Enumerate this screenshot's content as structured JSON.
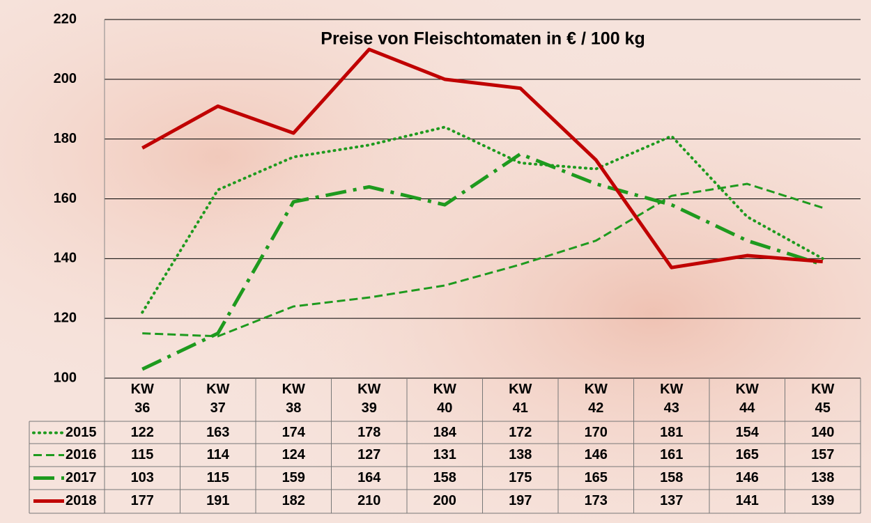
{
  "chart_data": {
    "type": "line",
    "title": "Preise von Fleischtomaten in € / 100 kg",
    "categories": [
      "KW\n36",
      "KW\n37",
      "KW\n38",
      "KW\n39",
      "KW\n40",
      "KW\n41",
      "KW\n42",
      "KW\n43",
      "KW\n44",
      "KW\n45"
    ],
    "series": [
      {
        "name": "2015",
        "color": "#1e9a1e",
        "line_style": "dotted",
        "values": [
          122,
          163,
          174,
          178,
          184,
          172,
          170,
          181,
          154,
          140
        ]
      },
      {
        "name": "2016",
        "color": "#1e9a1e",
        "line_style": "dashed",
        "values": [
          115,
          114,
          124,
          127,
          131,
          138,
          146,
          161,
          165,
          157
        ]
      },
      {
        "name": "2017",
        "color": "#1e9a1e",
        "line_style": "dashdot",
        "values": [
          103,
          115,
          159,
          164,
          158,
          175,
          165,
          158,
          146,
          138
        ]
      },
      {
        "name": "2018",
        "color": "#c00000",
        "line_style": "solid",
        "values": [
          177,
          191,
          182,
          210,
          200,
          197,
          173,
          137,
          141,
          139
        ]
      }
    ],
    "ylim": [
      100,
      220
    ],
    "yticks": [
      100,
      120,
      140,
      160,
      180,
      200,
      220
    ],
    "grid": true,
    "data_table": true
  }
}
